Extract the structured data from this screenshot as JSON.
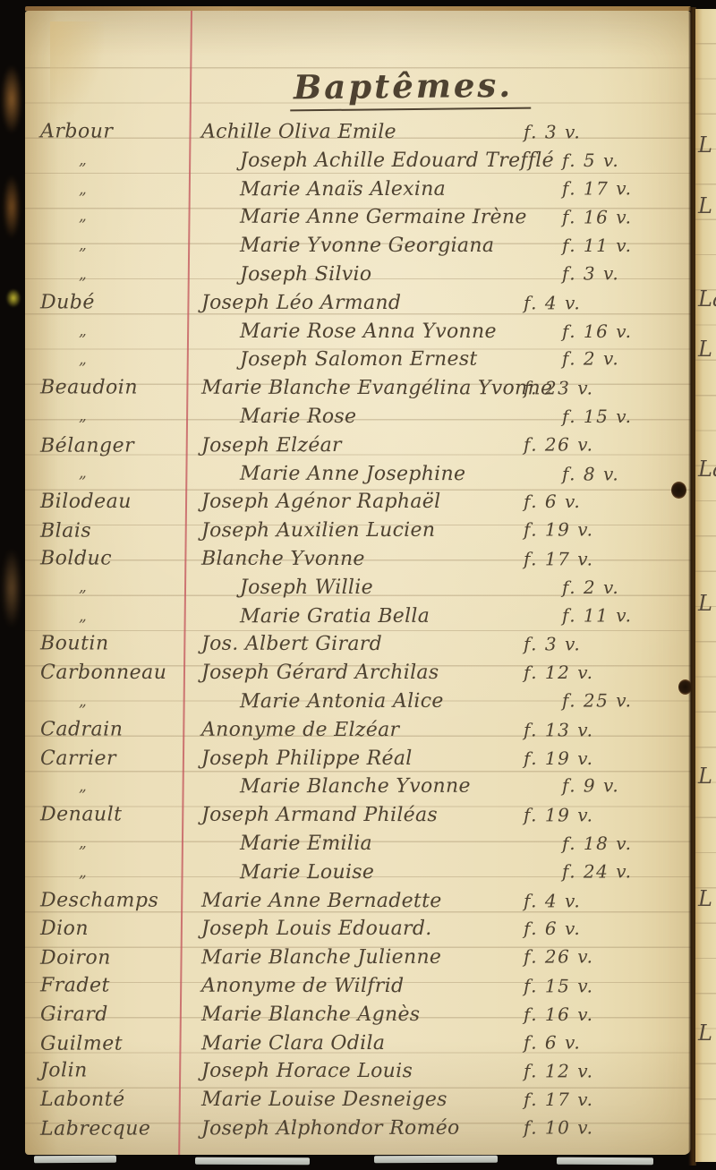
{
  "page": {
    "title": "Baptêmes.",
    "ditto_mark": "„",
    "columns": [
      "surname",
      "given_names",
      "folio"
    ],
    "entries": [
      {
        "surname": "Arbour",
        "given_names": "Achille Oliva Emile",
        "folio": "f. 3 v."
      },
      {
        "surname": "„",
        "given_names": "Joseph Achille Edouard Trefflé",
        "folio": "f. 5 v."
      },
      {
        "surname": "„",
        "given_names": "Marie Anaïs Alexina",
        "folio": "f. 17 v."
      },
      {
        "surname": "„",
        "given_names": "Marie Anne Germaine Irène",
        "folio": "f. 16 v."
      },
      {
        "surname": "„",
        "given_names": "Marie Yvonne Georgiana",
        "folio": "f. 11 v."
      },
      {
        "surname": "„",
        "given_names": "Joseph Silvio",
        "folio": "f. 3 v."
      },
      {
        "surname": "Dubé",
        "given_names": "Joseph Léo Armand",
        "folio": "f. 4 v."
      },
      {
        "surname": "„",
        "given_names": "Marie Rose Anna Yvonne",
        "folio": "f. 16 v."
      },
      {
        "surname": "„",
        "given_names": "Joseph Salomon Ernest",
        "folio": "f. 2 v."
      },
      {
        "surname": "Beaudoin",
        "given_names": "Marie Blanche Evangélina Yvonne",
        "folio": "f. 23 v."
      },
      {
        "surname": "„",
        "given_names": "Marie Rose",
        "folio": "f. 15 v."
      },
      {
        "surname": "Bélanger",
        "given_names": "Joseph Elzéar",
        "folio": "f. 26 v."
      },
      {
        "surname": "„",
        "given_names": "Marie Anne Josephine",
        "folio": "f. 8 v."
      },
      {
        "surname": "Bilodeau",
        "given_names": "Joseph Agénor Raphaël",
        "folio": "f. 6 v."
      },
      {
        "surname": "Blais",
        "given_names": "Joseph Auxilien Lucien",
        "folio": "f. 19 v."
      },
      {
        "surname": "Bolduc",
        "given_names": "Blanche Yvonne",
        "folio": "f. 17 v."
      },
      {
        "surname": "„",
        "given_names": "Joseph Willie",
        "folio": "f. 2 v."
      },
      {
        "surname": "„",
        "given_names": "Marie Gratia Bella",
        "folio": "f. 11 v."
      },
      {
        "surname": "Boutin",
        "given_names": "Jos. Albert Girard",
        "folio": "f. 3 v."
      },
      {
        "surname": "Carbonneau",
        "given_names": "Joseph Gérard Archilas",
        "folio": "f. 12 v."
      },
      {
        "surname": "„",
        "given_names": "Marie Antonia Alice",
        "folio": "f. 25 v."
      },
      {
        "surname": "Cadrain",
        "given_names": "Anonyme de Elzéar",
        "folio": "f. 13 v."
      },
      {
        "surname": "Carrier",
        "given_names": "Joseph Philippe Réal",
        "folio": "f. 19 v."
      },
      {
        "surname": "„",
        "given_names": "Marie Blanche Yvonne",
        "folio": "f. 9 v."
      },
      {
        "surname": "Denault",
        "given_names": "Joseph Armand Philéas",
        "folio": "f. 19 v."
      },
      {
        "surname": "„",
        "given_names": "Marie Emilia",
        "folio": "f. 18 v."
      },
      {
        "surname": "„",
        "given_names": "Marie Louise",
        "folio": "f. 24 v."
      },
      {
        "surname": "Deschamps",
        "given_names": "Marie Anne Bernadette",
        "folio": "f. 4 v."
      },
      {
        "surname": "Dion",
        "given_names": "Joseph Louis Edouard.",
        "folio": "f. 6 v."
      },
      {
        "surname": "Doiron",
        "given_names": "Marie Blanche Julienne",
        "folio": "f. 26 v."
      },
      {
        "surname": "Fradet",
        "given_names": "Anonyme de Wilfrid",
        "folio": "f. 15 v."
      },
      {
        "surname": "Girard",
        "given_names": "Marie Blanche Agnès",
        "folio": "f. 16 v."
      },
      {
        "surname": "Guilmet",
        "given_names": "Marie Clara Odila",
        "folio": "f. 6 v."
      },
      {
        "surname": "Jolin",
        "given_names": "Joseph Horace Louis",
        "folio": "f. 12 v."
      },
      {
        "surname": "Labonté",
        "given_names": "Marie Louise Desneiges",
        "folio": "f. 17 v."
      },
      {
        "surname": "Labrecque",
        "given_names": "Joseph Alphondor Roméo",
        "folio": "f. 10 v."
      }
    ],
    "facing_page_fragments": [
      "L",
      "L",
      "La",
      "L",
      "La",
      "L",
      "L",
      "L",
      "L"
    ],
    "colors": {
      "paper": "#ecdfba",
      "ink": "#4e4231",
      "margin_line": "#c45a5f",
      "ruled_line": "#96805c",
      "photo_background": "#0b0806"
    }
  }
}
